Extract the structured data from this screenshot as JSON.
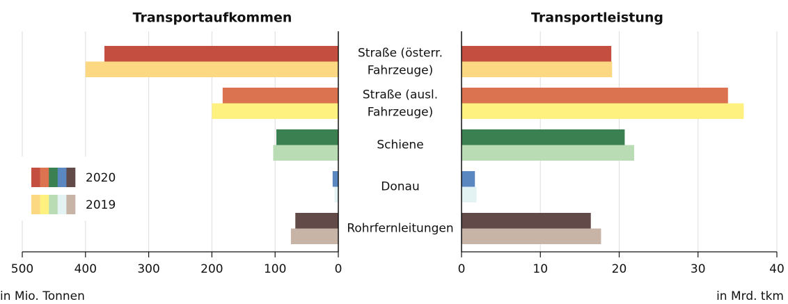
{
  "chart_data": [
    {
      "type": "bar",
      "orientation": "horizontal",
      "title": "Transportaufkommen",
      "xlabel": "in Mio. Tonnen",
      "categories": [
        [
          "Straße (österr.",
          "Fahrzeuge)"
        ],
        [
          "Straße (ausl.",
          "Fahrzeuge)"
        ],
        [
          "Schiene"
        ],
        [
          "Donau"
        ],
        [
          "Rohrfernleitungen"
        ]
      ],
      "series": [
        {
          "name": "2020",
          "colors": [
            "#c44e3f",
            "#dc7350",
            "#3a8050",
            "#5b87c0",
            "#614a48"
          ],
          "values": [
            370,
            183,
            98,
            9,
            68
          ]
        },
        {
          "name": "2019",
          "colors": [
            "#fdd882",
            "#fef17f",
            "#badcb5",
            "#e3f3f3",
            "#c8b3a7"
          ],
          "values": [
            400,
            200,
            103,
            6,
            75
          ]
        }
      ],
      "xlim": [
        500,
        0
      ],
      "xticks": [
        500,
        400,
        300,
        200,
        100,
        0
      ],
      "grid": true
    },
    {
      "type": "bar",
      "orientation": "horizontal",
      "title": "Transportleistung",
      "xlabel": "in Mrd. tkm",
      "series": [
        {
          "values": [
            19.0,
            33.8,
            20.7,
            1.7,
            16.4
          ]
        },
        {
          "values": [
            19.1,
            35.8,
            21.9,
            1.9,
            17.7
          ]
        }
      ],
      "xlim": [
        0,
        40
      ],
      "xticks": [
        0,
        10,
        20,
        30,
        40
      ],
      "grid": true
    }
  ]
}
